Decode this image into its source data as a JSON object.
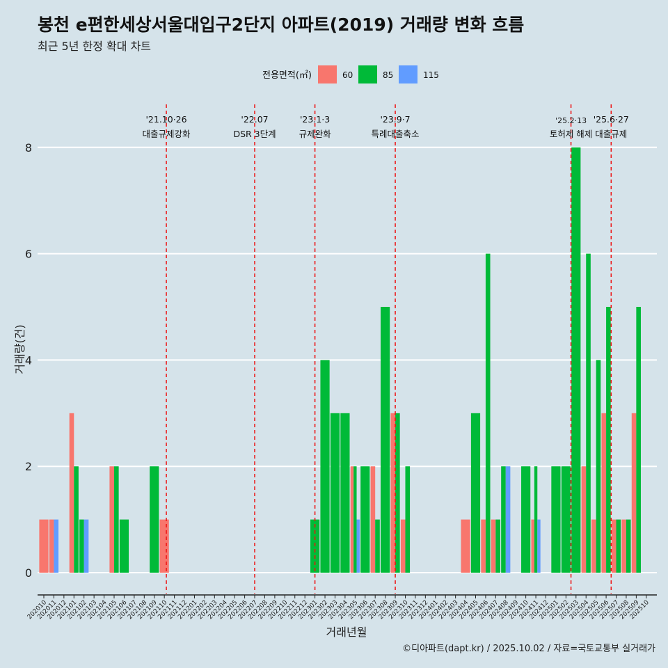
{
  "header": {
    "title": "봉천 e편한세상서울대입구2단지 아파트(2019) 거래량 변화 흐름",
    "subtitle": "최근 5년 한정 확대 차트"
  },
  "footer": {
    "caption": "©디아파트(dapt.kr) / 2025.10.02 / 자료=국토교통부 실거래가"
  },
  "chart_data": {
    "type": "bar",
    "xlabel": "거래년월",
    "ylabel": "거래량(건)",
    "ylim": [
      0,
      8
    ],
    "yticks": [
      0,
      2,
      4,
      6,
      8
    ],
    "grid": true,
    "legend_title": "전용면적(㎡)",
    "legend_position": "top",
    "categories": [
      "202010",
      "202011",
      "202012",
      "202101",
      "202102",
      "202103",
      "202104",
      "202105",
      "202106",
      "202107",
      "202108",
      "202109",
      "202110",
      "202111",
      "202112",
      "202201",
      "202202",
      "202203",
      "202204",
      "202205",
      "202206",
      "202207",
      "202208",
      "202209",
      "202210",
      "202211",
      "202212",
      "202301",
      "202302",
      "202303",
      "202304",
      "202305",
      "202306",
      "202307",
      "202308",
      "202309",
      "202310",
      "202311",
      "202312",
      "202401",
      "202402",
      "202403",
      "202404",
      "202405",
      "202406",
      "202407",
      "202408",
      "202409",
      "202410",
      "202411",
      "202412",
      "202501",
      "202502",
      "202503",
      "202504",
      "202505",
      "202506",
      "202507",
      "202508",
      "202509",
      "202510"
    ],
    "series": [
      {
        "name": "60",
        "color": "#f8766d",
        "values": [
          1,
          1,
          0,
          3,
          0,
          0,
          0,
          2,
          0,
          0,
          0,
          0,
          1,
          0,
          0,
          0,
          0,
          0,
          0,
          0,
          0,
          0,
          0,
          0,
          0,
          0,
          0,
          0,
          0,
          0,
          0,
          2,
          0,
          2,
          0,
          3,
          1,
          0,
          0,
          0,
          0,
          0,
          1,
          0,
          1,
          1,
          0,
          0,
          0,
          1,
          0,
          0,
          0,
          0,
          2,
          1,
          3,
          1,
          1,
          3,
          0
        ]
      },
      {
        "name": "85",
        "color": "#00ba38",
        "values": [
          0,
          0,
          0,
          2,
          1,
          0,
          0,
          2,
          1,
          0,
          0,
          2,
          0,
          0,
          0,
          0,
          0,
          0,
          0,
          0,
          0,
          0,
          0,
          0,
          0,
          0,
          0,
          1,
          4,
          3,
          3,
          2,
          2,
          1,
          5,
          3,
          2,
          0,
          0,
          0,
          0,
          0,
          0,
          3,
          6,
          1,
          2,
          0,
          2,
          2,
          0,
          2,
          2,
          8,
          6,
          4,
          5,
          1,
          1,
          5,
          0
        ]
      },
      {
        "name": "115",
        "color": "#619cff",
        "values": [
          0,
          1,
          0,
          0,
          1,
          0,
          0,
          0,
          0,
          0,
          0,
          0,
          0,
          0,
          0,
          0,
          0,
          0,
          0,
          0,
          0,
          0,
          0,
          0,
          0,
          0,
          0,
          0,
          0,
          0,
          0,
          1,
          0,
          0,
          0,
          0,
          0,
          0,
          0,
          0,
          0,
          0,
          0,
          0,
          0,
          0,
          2,
          0,
          0,
          1,
          0,
          0,
          0,
          0,
          0,
          0,
          0,
          0,
          0,
          0,
          0
        ]
      }
    ],
    "annotations": [
      {
        "date": "'21.10·26",
        "label": "대출규제강화",
        "month_index": 12.2
      },
      {
        "date": "'22.07",
        "label": "DSR 3단계",
        "month_index": 21.0
      },
      {
        "date": "'23.1·3",
        "label": "규제완화",
        "month_index": 27.0
      },
      {
        "date": "'23.9·7",
        "label": "특례대출축소",
        "month_index": 35.0
      },
      {
        "date": "'25.2·13",
        "label": "토허제 해제",
        "month_index": 52.5
      },
      {
        "date": "'25.6·27",
        "label": "대출규제",
        "month_index": 56.5
      }
    ]
  }
}
